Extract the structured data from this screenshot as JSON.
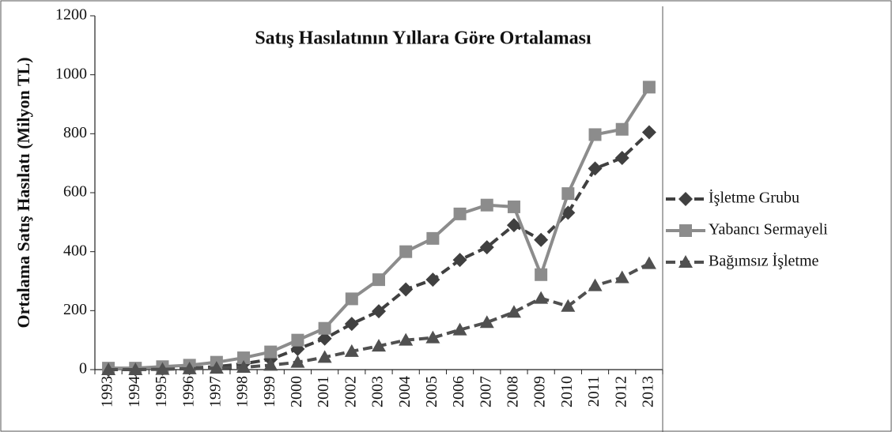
{
  "chart_data": {
    "type": "line",
    "title": "Satış Hasılatının Yıllara Göre Ortalaması",
    "y_label": "Ortalama Satış Hasılatı (Milyon TL)",
    "categories": [
      "1993",
      "1994",
      "1995",
      "1996",
      "1997",
      "1998",
      "1999",
      "2000",
      "2001",
      "2002",
      "2003",
      "2004",
      "2005",
      "2006",
      "2007",
      "2008",
      "2009",
      "2010",
      "2011",
      "2012",
      "2013"
    ],
    "series": [
      {
        "name": "İşletme Grubu",
        "color": "#404040",
        "dashed": true,
        "marker": "diamond",
        "values": [
          0,
          1,
          3,
          5,
          10,
          20,
          35,
          70,
          105,
          155,
          198,
          272,
          305,
          372,
          415,
          490,
          440,
          532,
          682,
          718,
          805
        ]
      },
      {
        "name": "Yabancı Sermayeli",
        "color": "#8c8c8c",
        "dashed": false,
        "marker": "square",
        "values": [
          5,
          5,
          10,
          15,
          25,
          40,
          60,
          100,
          140,
          240,
          305,
          400,
          445,
          528,
          558,
          552,
          322,
          597,
          797,
          815,
          958
        ]
      },
      {
        "name": "Bağımsız İşletme",
        "color": "#505050",
        "dashed": true,
        "marker": "triangle",
        "values": [
          0,
          0,
          1,
          3,
          5,
          8,
          15,
          25,
          42,
          62,
          80,
          100,
          108,
          135,
          160,
          195,
          242,
          215,
          285,
          312,
          360
        ]
      }
    ],
    "ylim": [
      0,
      1200
    ],
    "yticks": [
      0,
      200,
      400,
      600,
      800,
      1000,
      1200
    ],
    "legend": "right"
  }
}
